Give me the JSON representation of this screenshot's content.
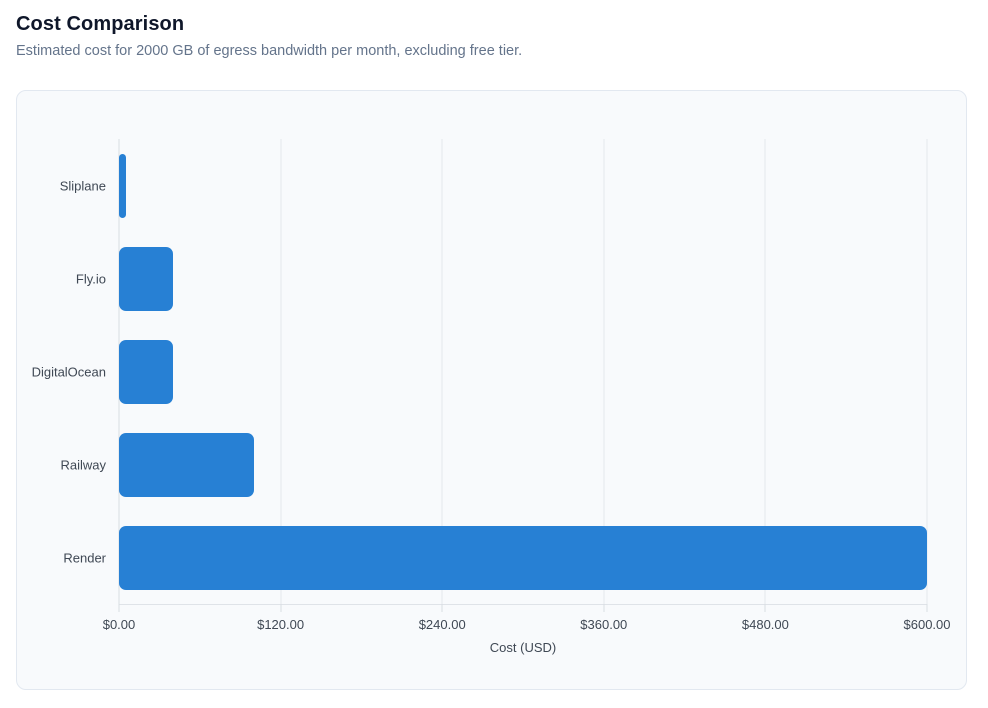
{
  "header": {
    "title": "Cost Comparison",
    "subtitle": "Estimated cost for 2000 GB of egress bandwidth per month, excluding free tier."
  },
  "chart_data": {
    "type": "bar",
    "orientation": "horizontal",
    "title": "Cost Comparison",
    "subtitle": "Estimated cost for 2000 GB of egress bandwidth per month, excluding free tier.",
    "categories": [
      "Sliplane",
      "Fly.io",
      "DigitalOcean",
      "Railway",
      "Render"
    ],
    "values": [
      5,
      40,
      40,
      100,
      600
    ],
    "xlabel": "Cost (USD)",
    "ylabel": "",
    "xlim": [
      0,
      600
    ],
    "x_ticks": [
      0,
      120,
      240,
      360,
      480,
      600
    ],
    "x_tick_labels": [
      "$0.00",
      "$120.00",
      "$240.00",
      "$360.00",
      "$480.00",
      "$600.00"
    ],
    "grid": "vertical",
    "legend": "none",
    "bar_color": "#2780d4"
  },
  "colors": {
    "bar": "#2780d4",
    "card_background": "#f8fafc",
    "card_border": "#e2e8f0",
    "gridline": "#e5e8ec",
    "title_text": "#0f172a",
    "subtitle_text": "#64748b",
    "axis_text": "#3f4854"
  }
}
